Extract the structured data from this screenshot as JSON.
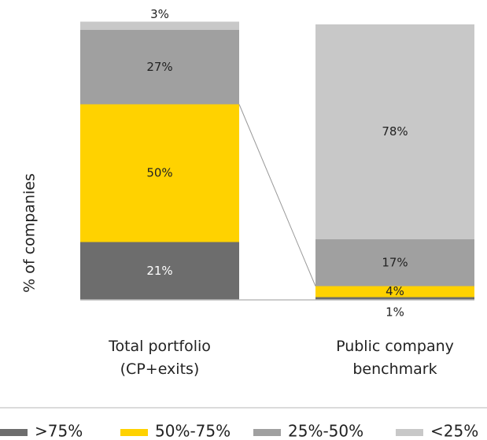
{
  "chart_data": {
    "type": "stacked_bar",
    "y_label": "% of companies",
    "categories": [
      "Total portfolio\n(CP+exits)",
      "Public company\nbenchmark"
    ],
    "ylim": [
      0,
      100
    ],
    "series": [
      {
        "name": ">75%",
        "color": "#6d6d6d",
        "values": [
          21,
          1
        ],
        "value_labels": [
          "21%",
          "1%"
        ]
      },
      {
        "name": "50%-75%",
        "color": "#ffd200",
        "values": [
          50,
          4
        ],
        "value_labels": [
          "50%",
          "4%"
        ]
      },
      {
        "name": "25%-50%",
        "color": "#a0a0a0",
        "values": [
          27,
          17
        ],
        "value_labels": [
          "27%",
          "17%"
        ]
      },
      {
        "name": "<25%",
        "color": "#c8c8c8",
        "values": [
          3,
          78
        ],
        "value_labels": [
          "3%",
          "78%"
        ]
      }
    ]
  }
}
